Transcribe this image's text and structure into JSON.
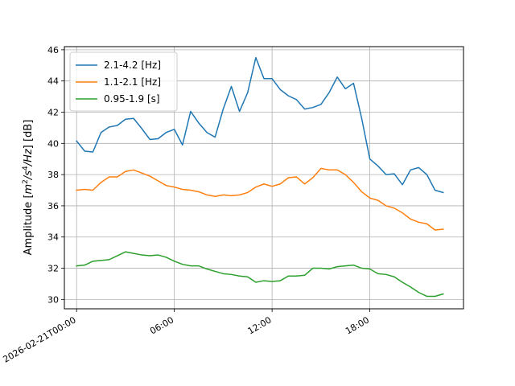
{
  "chart_data": {
    "type": "line",
    "title": "",
    "xlabel": "",
    "ylabel": "Amplitude [m²/s⁴/Hz] [dB]",
    "ylabel_parts": {
      "pre": "Amplitude [",
      "m": "m",
      "m_exp": "2",
      "s": "/s",
      "s_exp": "4",
      "hz": "/Hz",
      "post": "] [dB]"
    },
    "xlim": [
      -0.75,
      23.75
    ],
    "ylim": [
      29.4,
      46.2
    ],
    "grid": true,
    "legend_position": "upper-left",
    "x_ticks": [
      {
        "value": 0,
        "label": "2026-02-21T00:00"
      },
      {
        "value": 6,
        "label": "06:00"
      },
      {
        "value": 12,
        "label": "12:00"
      },
      {
        "value": 18,
        "label": "18:00"
      }
    ],
    "y_ticks": [
      30,
      32,
      34,
      36,
      38,
      40,
      42,
      44,
      46
    ],
    "x": [
      0,
      0.5,
      1,
      1.5,
      2,
      2.5,
      3,
      3.5,
      4,
      4.5,
      5,
      5.5,
      6,
      6.5,
      7,
      7.5,
      8,
      8.5,
      9,
      9.5,
      10,
      10.5,
      11,
      11.5,
      12,
      12.5,
      13,
      13.5,
      14,
      14.5,
      15,
      15.5,
      16,
      16.5,
      17,
      17.5,
      18,
      18.5,
      19,
      19.5,
      20,
      20.5,
      21,
      21.5,
      22,
      22.5
    ],
    "series": [
      {
        "name": "2.1-4.2 [Hz]",
        "color": "#1f77b4",
        "values": [
          40.15,
          39.5,
          39.45,
          40.7,
          41.05,
          41.15,
          41.55,
          41.6,
          40.95,
          40.25,
          40.3,
          40.7,
          40.9,
          39.9,
          42.05,
          41.3,
          40.7,
          40.4,
          42.2,
          43.65,
          42.05,
          43.25,
          45.5,
          44.15,
          44.15,
          43.45,
          43.05,
          42.8,
          42.2,
          42.3,
          42.5,
          43.25,
          44.25,
          43.5,
          43.85,
          41.6,
          39.0,
          38.55,
          38.0,
          38.05,
          37.35,
          38.3,
          38.45,
          38.0,
          37.0,
          36.85
        ]
      },
      {
        "name": "1.1-2.1 [Hz]",
        "color": "#ff7f0e",
        "values": [
          37.0,
          37.05,
          37.0,
          37.5,
          37.85,
          37.85,
          38.2,
          38.3,
          38.1,
          37.9,
          37.6,
          37.3,
          37.2,
          37.05,
          37.0,
          36.9,
          36.7,
          36.6,
          36.7,
          36.65,
          36.7,
          36.85,
          37.2,
          37.4,
          37.25,
          37.4,
          37.8,
          37.85,
          37.4,
          37.8,
          38.4,
          38.3,
          38.3,
          38.0,
          37.5,
          36.9,
          36.5,
          36.35,
          36.0,
          35.85,
          35.55,
          35.15,
          34.95,
          34.85,
          34.45,
          34.5
        ]
      },
      {
        "name": "0.95-1.9 [s]",
        "color": "#2ca02c",
        "values": [
          32.15,
          32.2,
          32.45,
          32.5,
          32.55,
          32.8,
          33.05,
          32.95,
          32.85,
          32.8,
          32.85,
          32.7,
          32.45,
          32.25,
          32.15,
          32.15,
          31.95,
          31.8,
          31.65,
          31.6,
          31.5,
          31.45,
          31.1,
          31.2,
          31.15,
          31.2,
          31.5,
          31.5,
          31.55,
          32.0,
          32.0,
          31.95,
          32.1,
          32.15,
          32.2,
          32.0,
          31.95,
          31.65,
          31.6,
          31.45,
          31.1,
          30.8,
          30.45,
          30.2,
          30.2,
          30.35
        ]
      }
    ]
  }
}
